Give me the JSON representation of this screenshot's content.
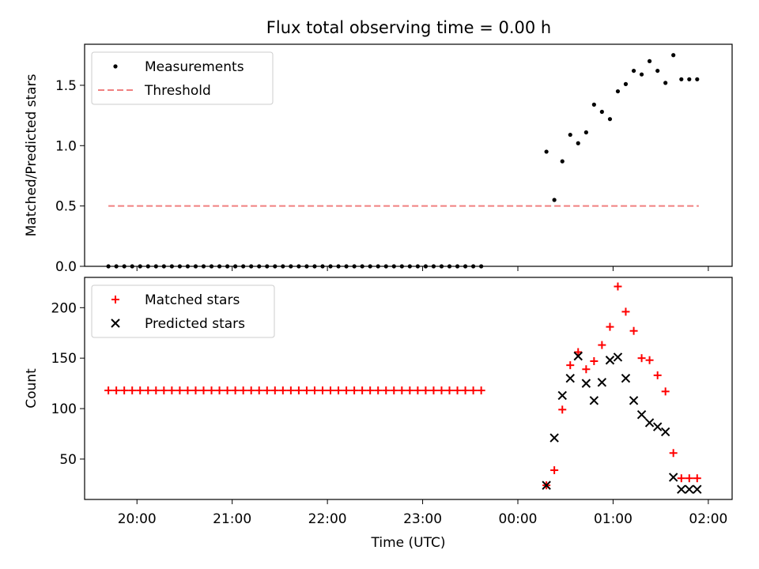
{
  "colors": {
    "measurements": "#000000",
    "threshold": "#f08080",
    "matched": "#ff0000",
    "predicted": "#000000",
    "axes": "#000000",
    "background": "#ffffff"
  },
  "chart_data": [
    {
      "type": "scatter",
      "title": "Flux total observing time = 0.00 h",
      "xlabel": "",
      "ylabel": "Matched/Predicted stars",
      "xlim": [
        -0.25,
        6.55
      ],
      "ylim": [
        0.0,
        1.84
      ],
      "yticks": [
        0.0,
        0.5,
        1.0,
        1.5
      ],
      "ytick_labels": [
        "0.0",
        "0.5",
        "1.0",
        "1.5"
      ],
      "xticks": [
        0.3,
        1.3,
        2.3,
        3.3,
        4.3,
        5.3,
        6.3
      ],
      "grid": false,
      "legend": {
        "placement": "upper-left",
        "entries": [
          "Measurements",
          "Threshold"
        ]
      },
      "series": [
        {
          "name": "Measurements",
          "marker": "dot",
          "x_start": 0.0,
          "x_step": 0.0833,
          "count": 48,
          "y_value": 0.0,
          "x_extra": [
            4.6,
            4.683,
            4.767,
            4.85,
            4.933,
            5.017,
            5.1,
            5.183,
            5.267,
            5.35,
            5.433,
            5.517,
            5.6,
            5.683,
            5.767,
            5.85,
            5.933,
            6.017,
            6.1,
            6.183
          ],
          "y_extra": [
            0.95,
            0.55,
            0.87,
            1.09,
            1.02,
            1.11,
            1.34,
            1.28,
            1.22,
            1.45,
            1.51,
            1.62,
            1.59,
            1.7,
            1.62,
            1.52,
            1.75,
            1.55,
            1.55,
            1.55
          ]
        },
        {
          "name": "Threshold",
          "line": "dashed",
          "x": [
            0.0,
            6.2
          ],
          "y": [
            0.5,
            0.5
          ]
        }
      ]
    },
    {
      "type": "scatter",
      "title": "",
      "xlabel": "Time (UTC)",
      "ylabel": "Count",
      "xlim": [
        -0.25,
        6.55
      ],
      "ylim": [
        10,
        230
      ],
      "yticks": [
        50,
        100,
        150,
        200
      ],
      "ytick_labels": [
        "50",
        "100",
        "150",
        "200"
      ],
      "xticks": [
        0.3,
        1.3,
        2.3,
        3.3,
        4.3,
        5.3,
        6.3
      ],
      "xtick_labels": [
        "20:00",
        "21:00",
        "22:00",
        "23:00",
        "00:00",
        "01:00",
        "02:00"
      ],
      "grid": false,
      "legend": {
        "placement": "upper-left",
        "entries": [
          "Matched stars",
          "Predicted stars"
        ]
      },
      "series": [
        {
          "name": "Matched stars",
          "marker": "plus",
          "x_start": 0.0,
          "x_step": 0.0833,
          "count": 48,
          "y_value": 118,
          "x_extra": [
            4.6,
            4.683,
            4.767,
            4.85,
            4.933,
            5.017,
            5.1,
            5.183,
            5.267,
            5.35,
            5.433,
            5.517,
            5.6,
            5.683,
            5.767,
            5.85,
            5.933,
            6.017,
            6.1,
            6.183
          ],
          "y_extra": [
            24,
            39,
            99,
            143,
            156,
            139,
            147,
            163,
            181,
            221,
            196,
            177,
            150,
            148,
            133,
            117,
            56,
            31,
            31,
            31
          ]
        },
        {
          "name": "Predicted stars",
          "marker": "x",
          "x": [
            4.6,
            4.683,
            4.767,
            4.85,
            4.933,
            5.017,
            5.1,
            5.183,
            5.267,
            5.35,
            5.433,
            5.517,
            5.6,
            5.683,
            5.767,
            5.85,
            5.933,
            6.017,
            6.1,
            6.183
          ],
          "y": [
            24,
            71,
            113,
            130,
            152,
            125,
            108,
            126,
            148,
            151,
            130,
            108,
            94,
            86,
            82,
            77,
            32,
            20,
            20,
            20
          ]
        }
      ]
    }
  ]
}
